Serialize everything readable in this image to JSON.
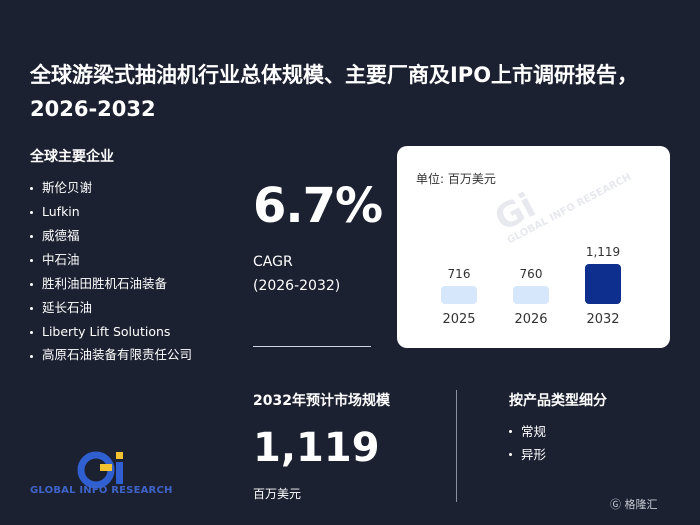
{
  "title": "全球游梁式抽油机行业总体规模、主要厂商及IPO上市调研报告，2026-2032",
  "companies": {
    "heading": "全球主要企业",
    "items": [
      "斯伦贝谢",
      "Lufkin",
      "威德福",
      "中石油",
      "胜利油田胜机石油装备",
      "延长石油",
      "Liberty Lift Solutions",
      "高原石油装备有限责任公司"
    ]
  },
  "cagr": {
    "value": "6.7%",
    "label": "CAGR",
    "period": "(2026-2032)"
  },
  "market": {
    "heading": "2032年预计市场规模",
    "value": "1,119",
    "unit": "百万美元"
  },
  "segments": {
    "heading": "按产品类型细分",
    "items": [
      "常规",
      "异形"
    ]
  },
  "watermark": {
    "mark": "Gi",
    "text": "GLOBAL INFO RESEARCH"
  },
  "logo": {
    "text": "GLOBAL INFO RESEARCH"
  },
  "corner_brand": "格隆汇",
  "chart_data": {
    "type": "bar",
    "unit_label": "单位: 百万美元",
    "categories": [
      "2025",
      "2026",
      "2032"
    ],
    "values": [
      716,
      760,
      1119
    ],
    "value_labels": [
      "716",
      "760",
      "1,119"
    ],
    "colors": [
      "#d6e6fb",
      "#d6e6fb",
      "#0f2f8f"
    ]
  }
}
